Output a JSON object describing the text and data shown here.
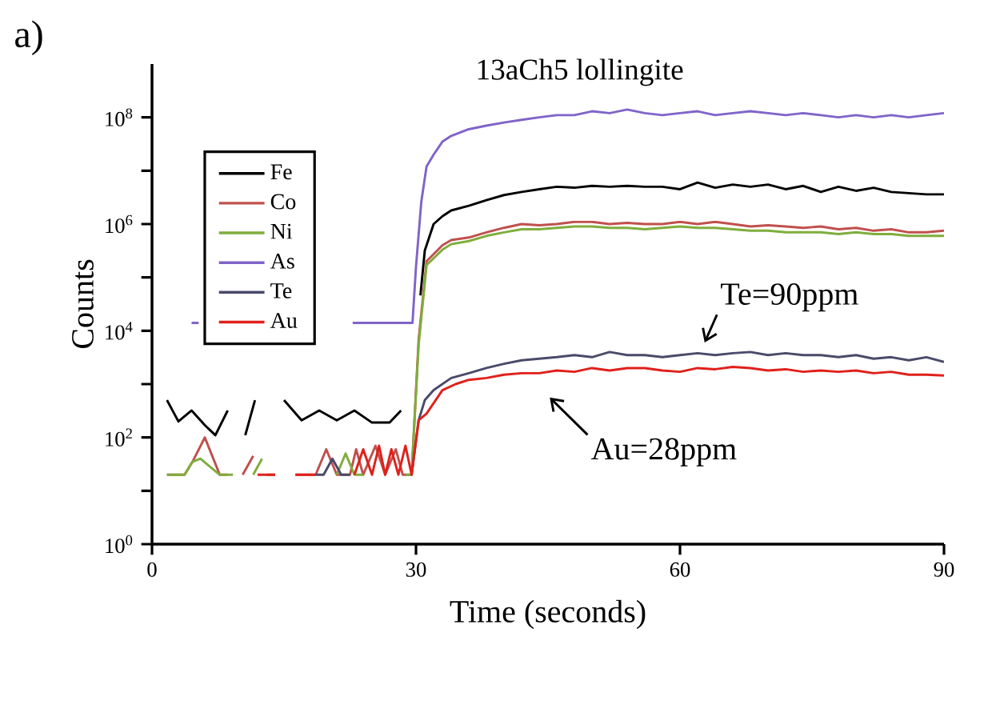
{
  "chart_data": {
    "type": "line",
    "title": "13aCh5 lollingite",
    "xlabel": "Time (seconds)",
    "ylabel": "Counts",
    "log": "y",
    "xlim": [
      0,
      90
    ],
    "ylim": [
      1,
      1000000000.0
    ],
    "xticks": [
      0,
      30,
      60,
      90
    ],
    "yticks": [
      {
        "value": 1,
        "label": "10$^{0}$"
      },
      {
        "value": 10,
        "label": null
      },
      {
        "value": 100,
        "label": "10$^{2}$"
      },
      {
        "value": 1000,
        "label": null
      },
      {
        "value": 10000,
        "label": "10$^{4}$"
      },
      {
        "value": 100000,
        "label": null
      },
      {
        "value": 1000000,
        "label": "10$^{6}$"
      },
      {
        "value": 10000000,
        "label": null
      },
      {
        "value": 100000000,
        "label": "10$^{8}$"
      }
    ],
    "legend": "top left",
    "marker": "none",
    "line_style": "solid",
    "grid": false,
    "series": [
      {
        "name": "Fe",
        "color": "#000000",
        "x": [
          1.7,
          3,
          4.5,
          6,
          7.2,
          8.6,
          9.5,
          10.6,
          11.7,
          13,
          15,
          17,
          19,
          21,
          23,
          25,
          27,
          28.3,
          29.5,
          30.5,
          31,
          32,
          33,
          34,
          36,
          38,
          40,
          42,
          44,
          46,
          48,
          50,
          52,
          54,
          56,
          58,
          60,
          62,
          64,
          66,
          68,
          70,
          72,
          74,
          76,
          78,
          80,
          82,
          84,
          86,
          88,
          90
        ],
        "values": [
          500,
          200,
          320,
          170,
          110,
          320,
          null,
          110,
          500,
          null,
          500,
          210,
          320,
          210,
          320,
          190,
          190,
          320,
          null,
          46000,
          320000,
          1000000,
          1400000,
          1800000,
          2200000,
          2800000,
          3500000,
          4000000,
          4500000,
          5000000,
          4800000,
          5200000,
          5000000,
          5200000,
          5000000,
          5000000,
          4500000,
          6000000,
          4800000,
          5500000,
          5000000,
          5500000,
          4500000,
          5200000,
          4000000,
          5000000,
          4200000,
          4800000,
          4000000,
          3800000,
          3600000,
          3600000
        ]
      },
      {
        "name": "Co",
        "color": "#c0504d",
        "x": [
          1.7,
          3.7,
          4.6,
          6.0,
          7.7,
          8.6,
          9.4,
          10.3,
          11.5,
          12.2,
          13,
          14,
          15,
          16.3,
          18.6,
          19.8,
          21,
          22.5,
          23.2,
          24,
          25.4,
          26.5,
          27.7,
          28.5,
          29.5,
          30.3,
          31.2,
          33,
          34,
          36,
          38,
          40,
          42,
          44,
          46,
          48,
          50,
          52,
          54,
          56,
          58,
          60,
          62,
          64,
          66,
          68,
          70,
          72,
          74,
          76,
          78,
          80,
          82,
          84,
          86,
          88,
          90
        ],
        "values": [
          20,
          20,
          35,
          100,
          20,
          20,
          null,
          20,
          45,
          null,
          20,
          20,
          null,
          20,
          20,
          60,
          20,
          20,
          60,
          20,
          70,
          20,
          60,
          20,
          20,
          6800,
          200000,
          400000,
          500000,
          560000,
          700000,
          850000,
          1000000,
          950000,
          1000000,
          1100000,
          1100000,
          1000000,
          1050000,
          1000000,
          1000000,
          1100000,
          1000000,
          1100000,
          1000000,
          900000,
          950000,
          900000,
          850000,
          900000,
          800000,
          850000,
          750000,
          800000,
          700000,
          700000,
          750000
        ]
      },
      {
        "name": "Ni",
        "color": "#7fad3c",
        "x": [
          1.7,
          3.7,
          4.6,
          5.5,
          7.7,
          9.2,
          10.2,
          11.5,
          12.5,
          13.5,
          21,
          22,
          23,
          24,
          25,
          28.8,
          29.5,
          30.3,
          31.2,
          33,
          34,
          36,
          38,
          40,
          42,
          44,
          46,
          48,
          50,
          52,
          54,
          56,
          58,
          60,
          62,
          64,
          66,
          68,
          70,
          72,
          74,
          76,
          78,
          80,
          82,
          84,
          86,
          88,
          90
        ],
        "values": [
          20,
          20,
          35,
          40,
          20,
          20,
          null,
          20,
          40,
          null,
          20,
          50,
          20,
          20,
          null,
          20,
          20,
          5500,
          170000,
          330000,
          420000,
          480000,
          600000,
          700000,
          800000,
          800000,
          850000,
          900000,
          900000,
          850000,
          850000,
          800000,
          850000,
          900000,
          850000,
          850000,
          800000,
          750000,
          750000,
          700000,
          700000,
          700000,
          650000,
          700000,
          650000,
          650000,
          600000,
          600000,
          600000
        ]
      },
      {
        "name": "As",
        "color": "#8064c8",
        "x": [
          4.5,
          5.3,
          6,
          22.8,
          25,
          27,
          29.6,
          30,
          30.6,
          31.2,
          32,
          33,
          34,
          36,
          38,
          40,
          42,
          44,
          46,
          48,
          50,
          52,
          54,
          56,
          58,
          60,
          62,
          64,
          66,
          68,
          70,
          72,
          74,
          76,
          78,
          80,
          82,
          84,
          86,
          88,
          90
        ],
        "values": [
          14000,
          14000,
          null,
          14000,
          14000,
          14000,
          14000,
          160000,
          2600000,
          12000000,
          20000000,
          35000000,
          45000000,
          60000000,
          70000000,
          80000000,
          90000000,
          100000000,
          110000000,
          110000000,
          130000000,
          120000000,
          140000000,
          120000000,
          110000000,
          120000000,
          130000000,
          110000000,
          120000000,
          130000000,
          120000000,
          110000000,
          120000000,
          110000000,
          100000000,
          110000000,
          100000000,
          110000000,
          100000000,
          110000000,
          120000000
        ]
      },
      {
        "name": "Te",
        "color": "#4a4a6a",
        "x": [
          18.6,
          19.5,
          20.5,
          21.5,
          22.5,
          23.5,
          29.5,
          30.3,
          31,
          32,
          34,
          36,
          38,
          40,
          42,
          44,
          46,
          48,
          50,
          52,
          54,
          56,
          58,
          60,
          62,
          64,
          66,
          68,
          70,
          72,
          74,
          76,
          78,
          80,
          82,
          84,
          86,
          88,
          90
        ],
        "values": [
          20,
          20,
          40,
          20,
          20,
          null,
          20,
          210,
          500,
          770,
          1300,
          1600,
          2000,
          2400,
          2800,
          3000,
          3200,
          3500,
          3200,
          4000,
          3500,
          3500,
          3200,
          3500,
          3800,
          3500,
          3800,
          4000,
          3500,
          3800,
          3500,
          3500,
          3200,
          3500,
          3000,
          3200,
          2800,
          3200,
          2600
        ]
      },
      {
        "name": "Au",
        "color": "#e0201b",
        "x": [
          12,
          14,
          14.5,
          16.3,
          18.6,
          19.5,
          23,
          24,
          25,
          25.8,
          26.5,
          27.2,
          28,
          28.8,
          29.5,
          30.3,
          31.2,
          33,
          34.5,
          36,
          38,
          40,
          42,
          44,
          46,
          48,
          50,
          52,
          54,
          56,
          58,
          60,
          62,
          64,
          66,
          68,
          70,
          72,
          74,
          76,
          78,
          80,
          82,
          84,
          86,
          88,
          90
        ],
        "values": [
          20,
          20,
          null,
          20,
          20,
          null,
          20,
          60,
          20,
          70,
          20,
          60,
          20,
          70,
          20,
          210,
          280,
          770,
          1000,
          1200,
          1300,
          1500,
          1600,
          1600,
          1800,
          1700,
          2000,
          1800,
          2000,
          2000,
          1800,
          1700,
          2000,
          1900,
          2100,
          2000,
          1800,
          1900,
          1700,
          1800,
          1700,
          1800,
          1600,
          1700,
          1500,
          1500,
          1450
        ]
      }
    ],
    "annotations": [
      {
        "text": "Te=90ppm",
        "x": 62,
        "y": 4000
      },
      {
        "text": "Au=28ppm",
        "x": 44,
        "y": 1600
      },
      "a)"
    ]
  }
}
